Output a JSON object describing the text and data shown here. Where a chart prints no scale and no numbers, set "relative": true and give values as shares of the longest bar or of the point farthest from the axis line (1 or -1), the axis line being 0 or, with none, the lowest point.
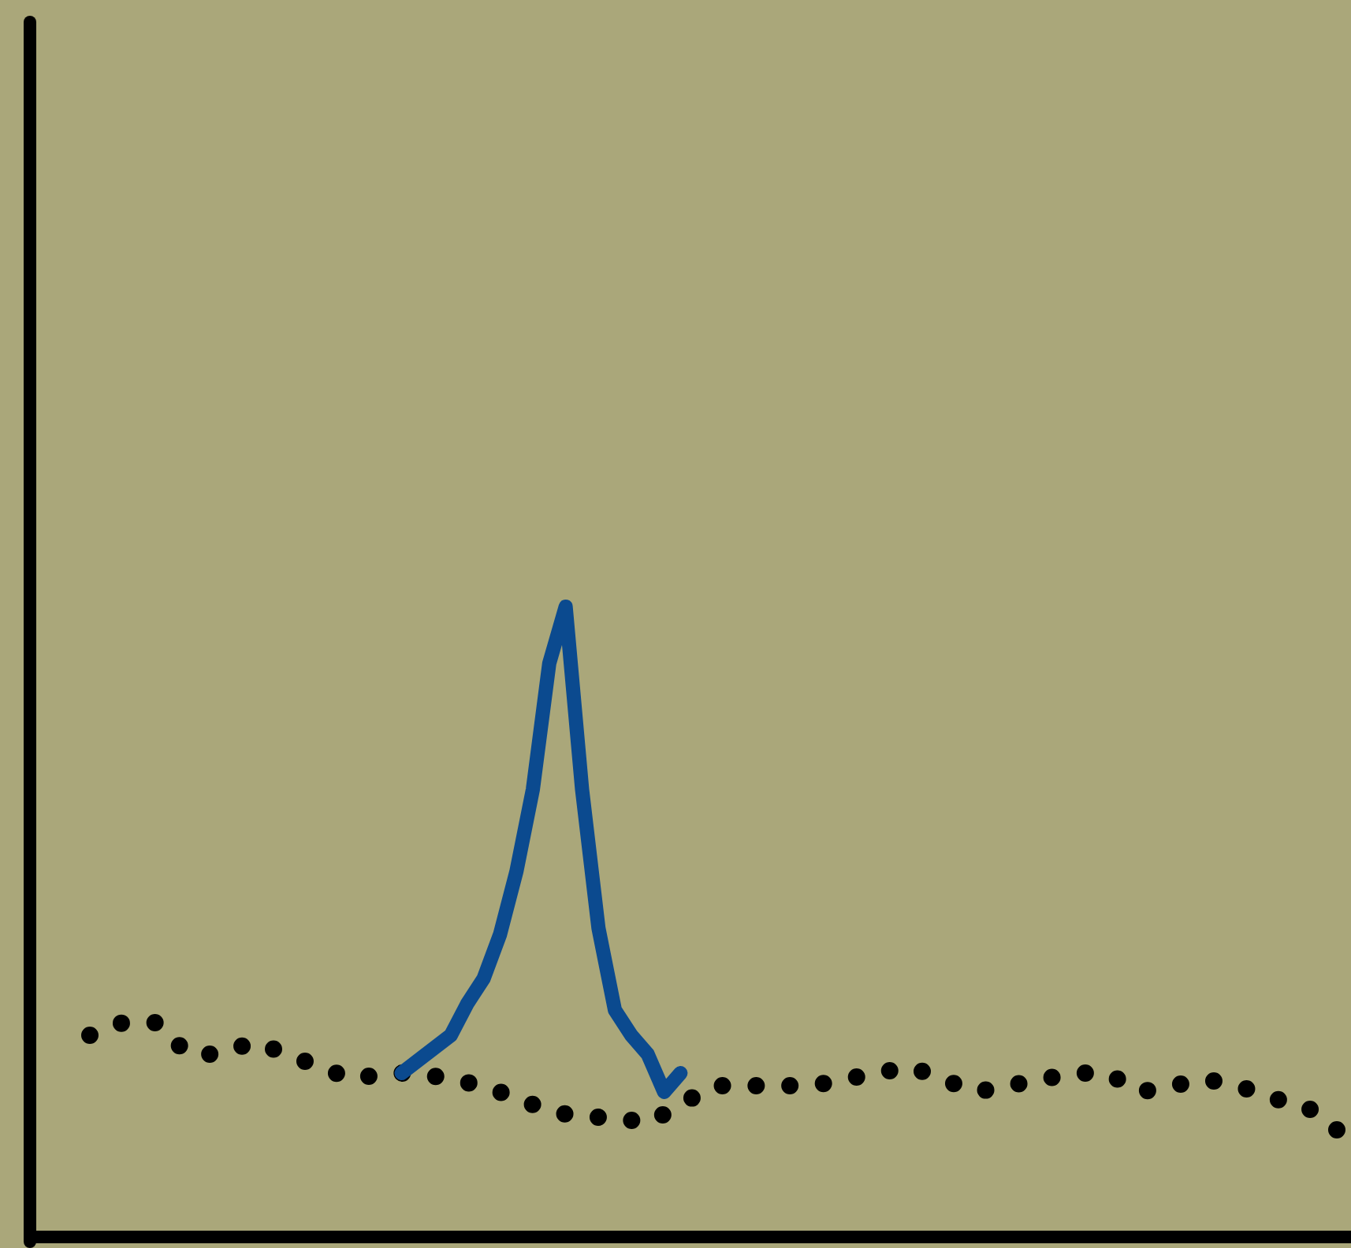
{
  "chart_data": {
    "type": "line",
    "relative": true,
    "tick_labels": false,
    "categories": [
      null,
      null,
      null,
      null,
      null,
      null,
      null,
      null,
      null,
      null,
      null,
      null,
      null,
      null,
      null,
      null,
      null,
      null,
      null,
      null,
      null,
      null,
      null,
      null,
      null,
      null,
      null,
      null,
      null,
      null,
      null,
      null,
      null,
      null,
      null,
      null,
      null,
      null,
      null,
      null,
      null,
      null,
      null,
      null,
      null,
      null,
      null,
      null,
      null,
      null,
      null,
      null,
      null,
      null,
      null,
      null,
      null,
      null,
      null,
      null,
      null,
      null,
      null,
      null,
      null,
      null,
      null,
      null,
      null,
      null,
      null,
      null,
      null,
      null,
      null,
      null,
      null
    ],
    "series": [
      {
        "line_style": "dotted",
        "color": "#000000",
        "values": [
          0.32,
          null,
          0.34,
          null,
          0.34,
          null,
          0.29,
          null,
          0.29,
          null,
          0.31,
          null,
          0.29,
          null,
          0.27,
          null,
          0.25,
          null,
          0.26,
          null,
          0.26,
          null,
          0.25,
          null,
          0.24,
          null,
          0.22,
          null,
          0.2,
          null,
          0.19,
          null,
          0.19,
          null,
          0.18,
          null,
          0.21,
          null,
          0.24,
          null,
          0.24,
          null,
          0.24,
          null,
          0.24,
          null,
          0.25,
          null,
          0.26,
          null,
          0.27,
          null,
          0.25,
          null,
          0.23,
          null,
          0.24,
          null,
          0.25,
          null,
          0.26,
          null,
          0.26,
          null,
          0.23,
          null,
          0.24,
          null,
          0.25,
          null,
          0.24,
          null,
          0.22,
          null,
          0.21,
          null,
          0.17
        ]
      },
      {
        "line_style": "solid",
        "color": "#0b4a8f",
        "values": [
          null,
          null,
          null,
          null,
          null,
          null,
          null,
          null,
          null,
          null,
          null,
          null,
          null,
          null,
          null,
          null,
          null,
          null,
          null,
          0.26,
          0.28,
          0.3,
          0.32,
          0.37,
          0.41,
          0.48,
          0.58,
          0.71,
          0.91,
          1.0,
          0.71,
          0.49,
          0.36,
          0.32,
          0.29,
          0.23,
          0.26,
          null,
          null,
          null,
          null,
          null,
          null,
          null,
          null,
          null,
          null,
          null,
          null,
          null,
          null,
          null,
          null,
          null,
          null,
          null,
          null,
          null,
          null,
          null,
          null,
          null,
          null,
          null,
          null,
          null,
          null,
          null,
          null,
          null,
          null,
          null,
          null,
          null,
          null,
          null,
          null
        ]
      }
    ]
  }
}
